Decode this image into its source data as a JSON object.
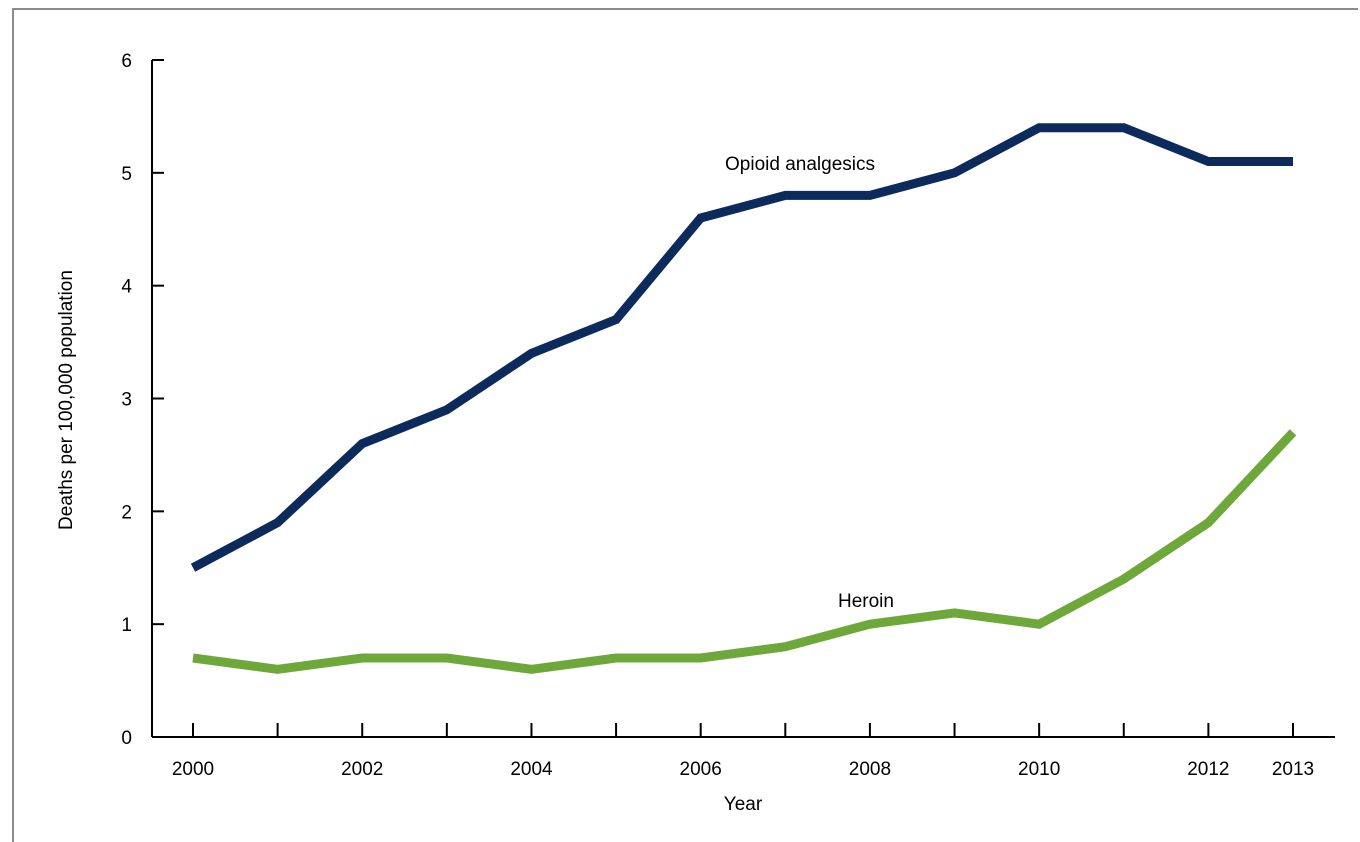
{
  "chart_data": {
    "type": "line",
    "title": "",
    "xlabel": "Year",
    "ylabel": "Deaths per 100,000 population",
    "x": [
      2000,
      2001,
      2002,
      2003,
      2004,
      2005,
      2006,
      2007,
      2008,
      2009,
      2010,
      2011,
      2012,
      2013
    ],
    "x_tick_labels": [
      "2000",
      "2002",
      "2004",
      "2006",
      "2008",
      "2010",
      "2012",
      "2013"
    ],
    "y_tick_labels": [
      "0",
      "1",
      "2",
      "3",
      "4",
      "5",
      "6"
    ],
    "ylim": [
      0,
      6
    ],
    "xlim": [
      2000,
      2013
    ],
    "grid": false,
    "legend": "none (series labeled directly on chart)",
    "series": [
      {
        "name": "Opioid analgesics",
        "color": "#0d2a5c",
        "values": [
          1.5,
          1.9,
          2.6,
          2.9,
          3.4,
          3.7,
          4.6,
          4.8,
          4.8,
          5.0,
          5.4,
          5.4,
          5.1,
          5.1
        ]
      },
      {
        "name": "Heroin",
        "color": "#6fa83a",
        "values": [
          0.7,
          0.6,
          0.7,
          0.7,
          0.6,
          0.7,
          0.7,
          0.8,
          1.0,
          1.1,
          1.0,
          1.4,
          1.9,
          2.7
        ]
      }
    ]
  }
}
